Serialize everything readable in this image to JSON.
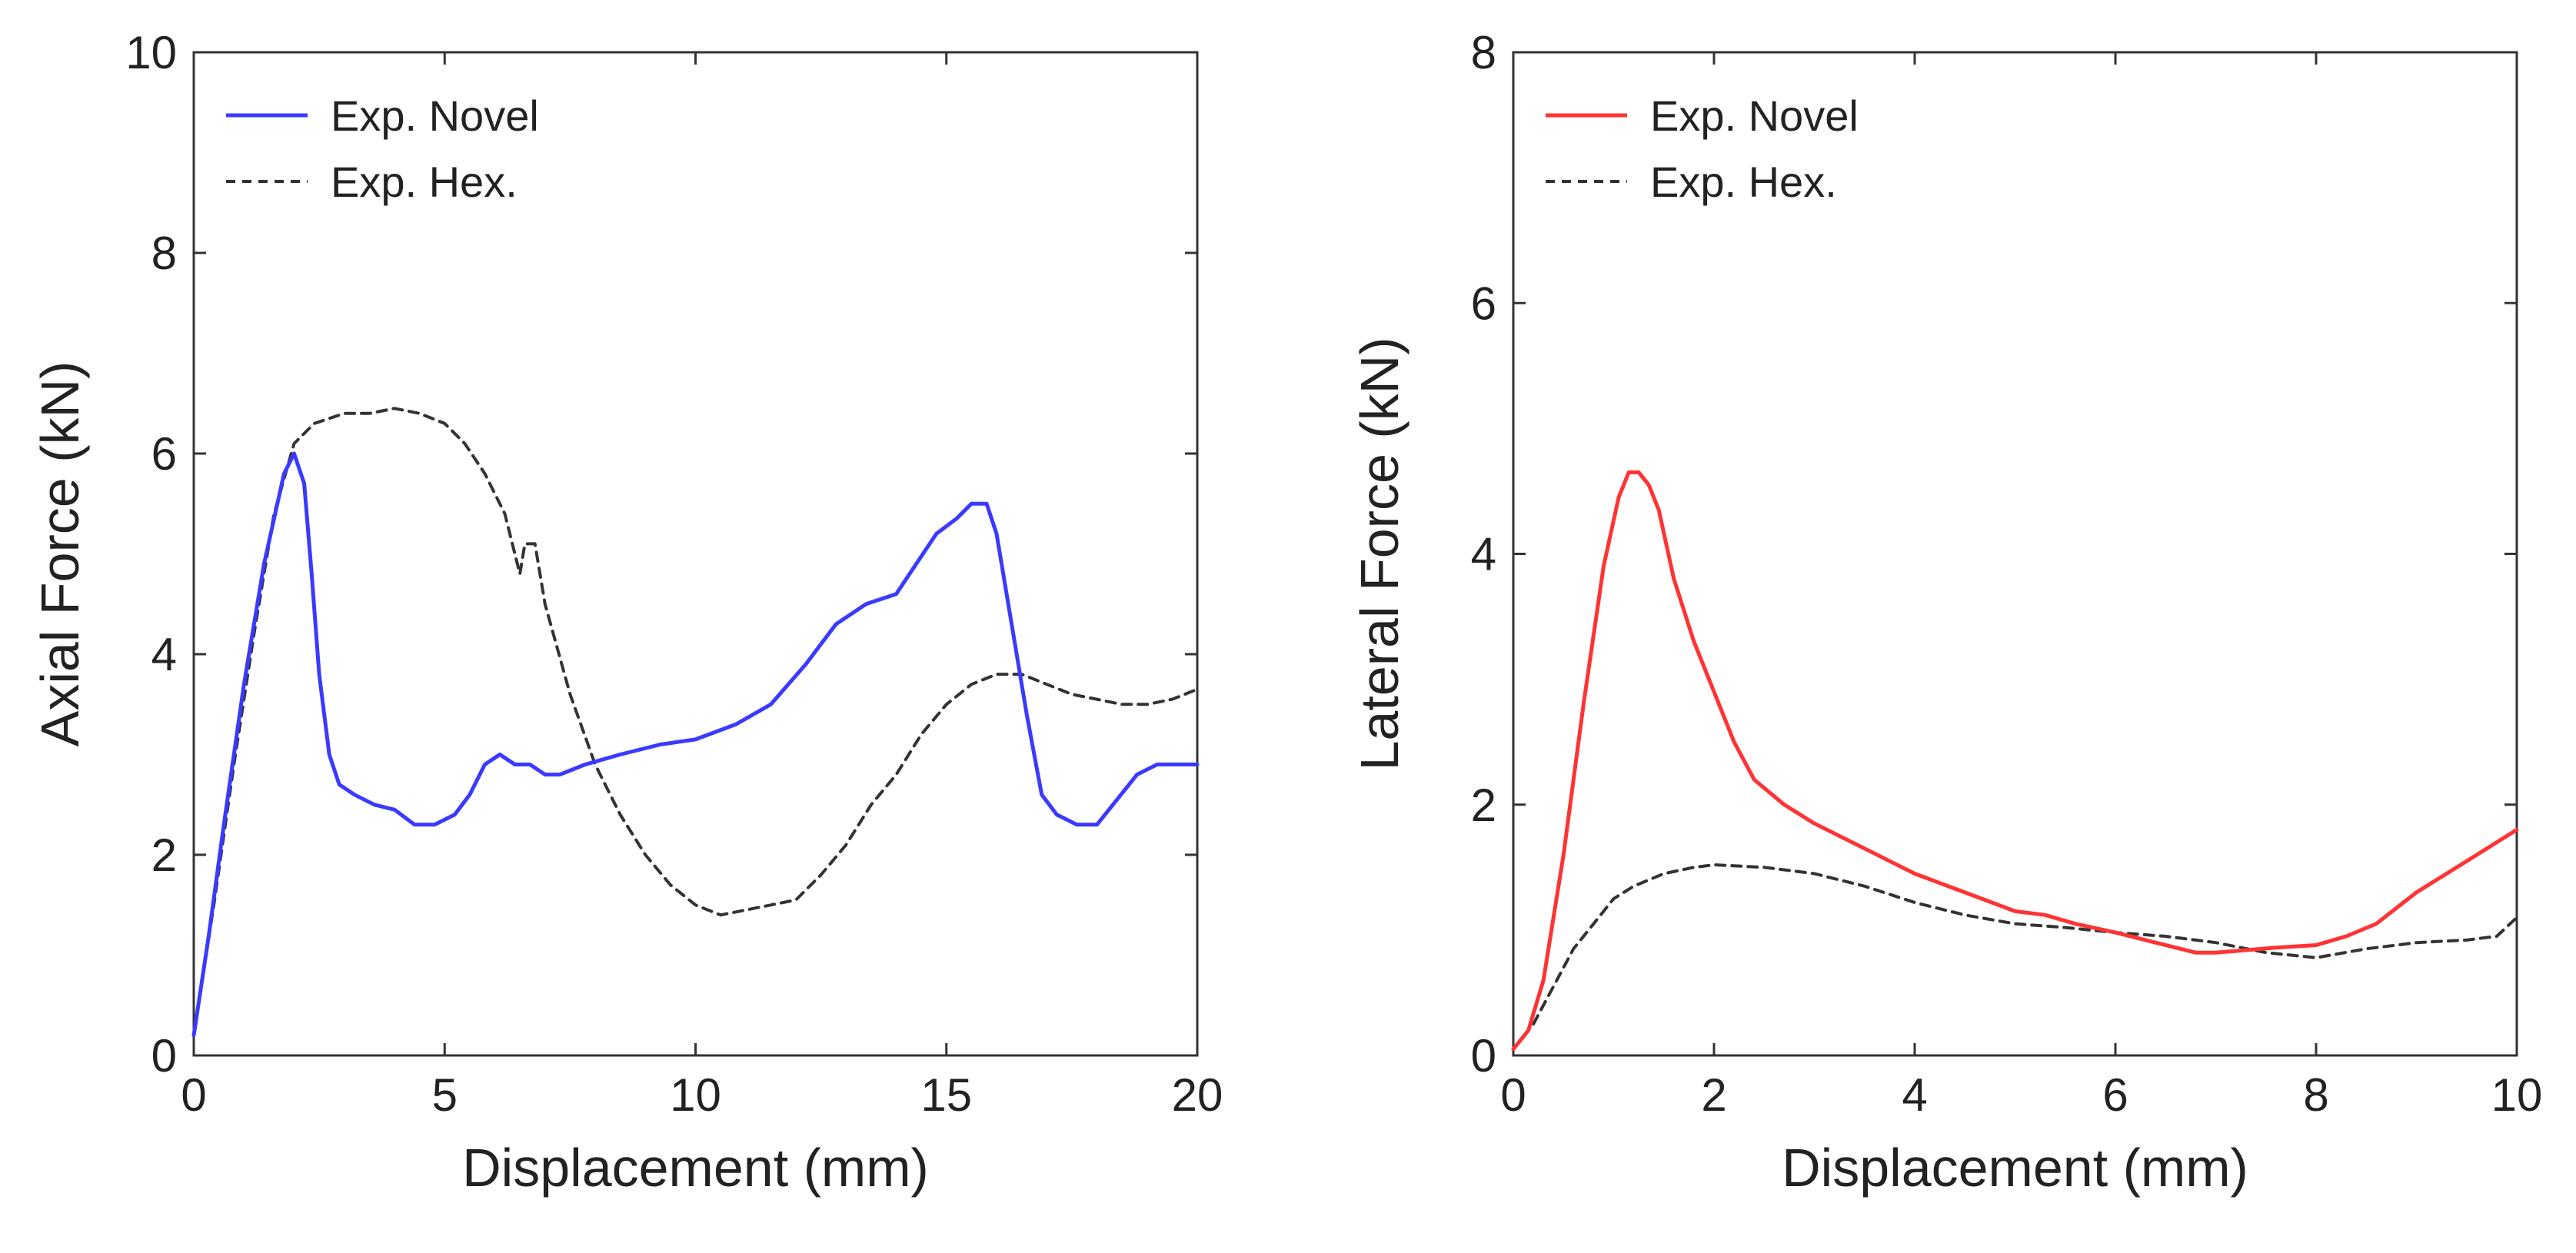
{
  "chart_data": [
    {
      "type": "line",
      "xlabel": "Displacement (mm)",
      "ylabel": "Axial Force (kN)",
      "xlim": [
        0,
        20
      ],
      "ylim": [
        0,
        10
      ],
      "xticks": [
        0,
        5,
        10,
        15,
        20
      ],
      "yticks": [
        0,
        2,
        4,
        6,
        8,
        10
      ],
      "legend_position": "top-left",
      "series": [
        {
          "name": "Exp. Novel",
          "color": "#3a3aff",
          "style": "solid",
          "x": [
            0,
            0.3,
            0.6,
            1.0,
            1.4,
            1.8,
            2.0,
            2.2,
            2.35,
            2.5,
            2.7,
            2.9,
            3.2,
            3.6,
            4.0,
            4.4,
            4.8,
            5.2,
            5.5,
            5.8,
            6.1,
            6.4,
            6.7,
            7.0,
            7.3,
            7.8,
            8.5,
            9.3,
            10.0,
            10.8,
            11.5,
            12.2,
            12.8,
            13.4,
            14.0,
            14.4,
            14.8,
            15.2,
            15.5,
            15.8,
            16.0,
            16.3,
            16.6,
            16.9,
            17.2,
            17.6,
            18.0,
            18.4,
            18.8,
            19.2,
            19.6,
            20.0
          ],
          "y": [
            0.2,
            1.2,
            2.3,
            3.7,
            4.9,
            5.8,
            6.0,
            5.7,
            4.8,
            3.8,
            3.0,
            2.7,
            2.6,
            2.5,
            2.45,
            2.3,
            2.3,
            2.4,
            2.6,
            2.9,
            3.0,
            2.9,
            2.9,
            2.8,
            2.8,
            2.9,
            3.0,
            3.1,
            3.15,
            3.3,
            3.5,
            3.9,
            4.3,
            4.5,
            4.6,
            4.9,
            5.2,
            5.35,
            5.5,
            5.5,
            5.2,
            4.3,
            3.4,
            2.6,
            2.4,
            2.3,
            2.3,
            2.55,
            2.8,
            2.9,
            2.9,
            2.9
          ]
        },
        {
          "name": "Exp. Hex.",
          "color": "#333333",
          "style": "dashed",
          "x": [
            0,
            0.4,
            0.8,
            1.2,
            1.6,
            2.0,
            2.4,
            3.0,
            3.5,
            4.0,
            4.5,
            5.0,
            5.4,
            5.8,
            6.2,
            6.5,
            6.6,
            6.8,
            7.0,
            7.5,
            8.0,
            8.5,
            9.0,
            9.5,
            10.0,
            10.5,
            11.0,
            11.5,
            12.0,
            12.5,
            13.0,
            13.5,
            14.0,
            14.5,
            15.0,
            15.5,
            16.0,
            16.5,
            17.0,
            17.5,
            18.0,
            18.5,
            19.0,
            19.5,
            20.0
          ],
          "y": [
            0.2,
            1.5,
            2.9,
            4.2,
            5.4,
            6.1,
            6.3,
            6.4,
            6.4,
            6.45,
            6.4,
            6.3,
            6.1,
            5.8,
            5.4,
            4.8,
            5.1,
            5.1,
            4.5,
            3.6,
            2.9,
            2.4,
            2.0,
            1.7,
            1.5,
            1.4,
            1.45,
            1.5,
            1.55,
            1.8,
            2.1,
            2.5,
            2.8,
            3.2,
            3.5,
            3.7,
            3.8,
            3.8,
            3.7,
            3.6,
            3.55,
            3.5,
            3.5,
            3.55,
            3.65
          ]
        }
      ]
    },
    {
      "type": "line",
      "xlabel": "Displacement (mm)",
      "ylabel": "Lateral Force (kN)",
      "xlim": [
        0,
        10
      ],
      "ylim": [
        0,
        8
      ],
      "xticks": [
        0,
        2,
        4,
        6,
        8,
        10
      ],
      "yticks": [
        0,
        2,
        4,
        6,
        8
      ],
      "legend_position": "top-left",
      "series": [
        {
          "name": "Exp. Novel",
          "color": "#ff3333",
          "style": "solid",
          "x": [
            0,
            0.15,
            0.3,
            0.5,
            0.7,
            0.9,
            1.05,
            1.15,
            1.25,
            1.35,
            1.45,
            1.6,
            1.8,
            2.0,
            2.2,
            2.4,
            2.7,
            3.0,
            3.5,
            4.0,
            4.5,
            5.0,
            5.3,
            5.6,
            6.0,
            6.4,
            6.8,
            7.0,
            7.3,
            7.6,
            8.0,
            8.3,
            8.6,
            9.0,
            9.5,
            10.0
          ],
          "y": [
            0.05,
            0.2,
            0.6,
            1.6,
            2.8,
            3.9,
            4.45,
            4.65,
            4.65,
            4.55,
            4.35,
            3.8,
            3.3,
            2.9,
            2.5,
            2.2,
            2.0,
            1.85,
            1.65,
            1.45,
            1.3,
            1.15,
            1.12,
            1.05,
            0.98,
            0.9,
            0.82,
            0.82,
            0.84,
            0.86,
            0.88,
            0.95,
            1.05,
            1.3,
            1.55,
            1.8
          ]
        },
        {
          "name": "Exp. Hex.",
          "color": "#333333",
          "style": "dashed",
          "x": [
            0,
            0.2,
            0.4,
            0.6,
            0.8,
            1.0,
            1.2,
            1.5,
            1.8,
            2.0,
            2.5,
            3.0,
            3.5,
            4.0,
            4.5,
            5.0,
            5.5,
            6.0,
            6.5,
            7.0,
            7.5,
            8.0,
            8.5,
            9.0,
            9.5,
            9.8,
            10.0
          ],
          "y": [
            0.05,
            0.25,
            0.55,
            0.85,
            1.05,
            1.25,
            1.35,
            1.45,
            1.5,
            1.52,
            1.5,
            1.45,
            1.35,
            1.22,
            1.12,
            1.05,
            1.02,
            0.98,
            0.95,
            0.9,
            0.82,
            0.78,
            0.85,
            0.9,
            0.92,
            0.95,
            1.1
          ]
        }
      ]
    }
  ]
}
